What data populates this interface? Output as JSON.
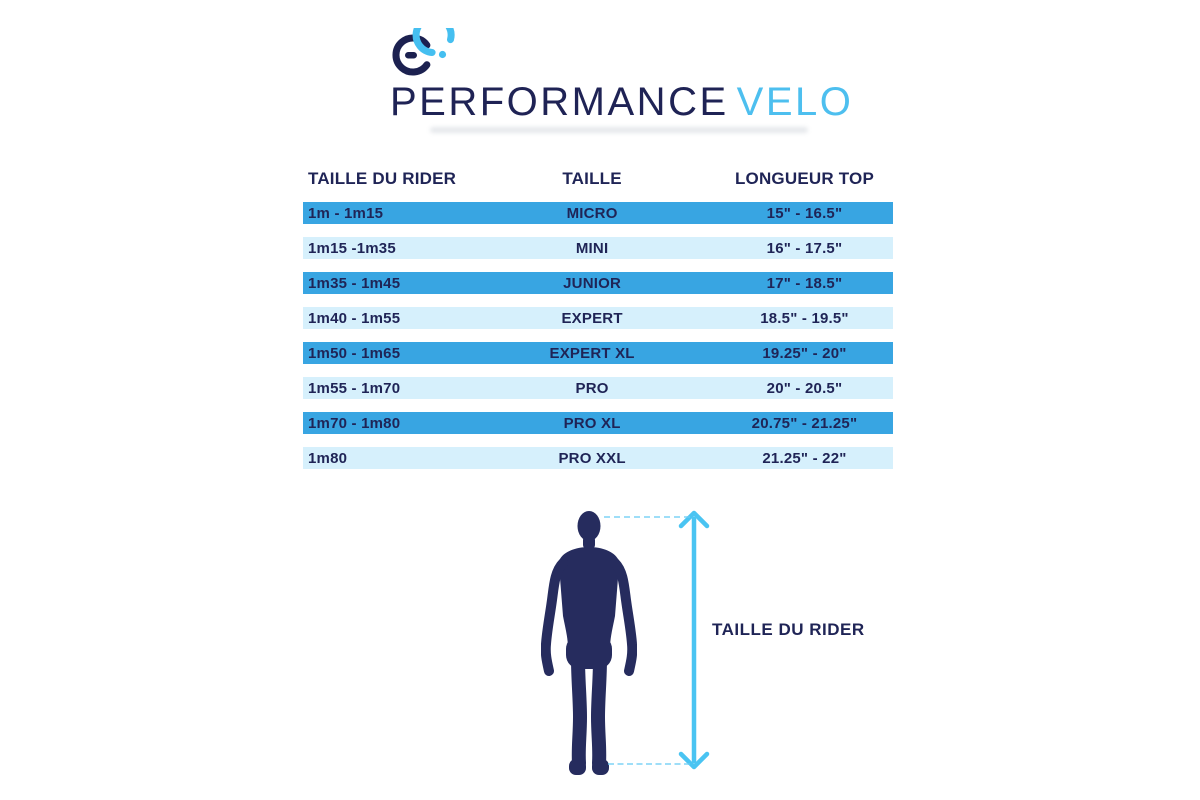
{
  "logo": {
    "name": "PERFORMANCE",
    "suffix": "VELO"
  },
  "chart_data": {
    "type": "table",
    "title": "PERFORMANCE VELO",
    "columns": [
      "TAILLE DU RIDER",
      "TAILLE",
      "LONGUEUR TOP"
    ],
    "rows": [
      [
        "1m - 1m15",
        "MICRO",
        "15\" - 16.5\""
      ],
      [
        "1m15 -1m35",
        "MINI",
        "16\" - 17.5\""
      ],
      [
        "1m35 - 1m45",
        "JUNIOR",
        "17\" - 18.5\""
      ],
      [
        "1m40 - 1m55",
        "EXPERT",
        "18.5\" - 19.5\""
      ],
      [
        "1m50 - 1m65",
        "EXPERT XL",
        "19.25\" - 20\""
      ],
      [
        "1m55 - 1m70",
        "PRO",
        "20\" - 20.5\""
      ],
      [
        "1m70 - 1m80",
        "PRO XL",
        "20.75\" - 21.25\""
      ],
      [
        "1m80",
        "PRO XXL",
        "21.25\" - 22\""
      ]
    ],
    "layout": {
      "row_stripe_pattern": "dark,light alternating",
      "grid": "off"
    }
  },
  "figure": {
    "label": "TAILLE DU RIDER"
  },
  "colors": {
    "navy": "#1f2456",
    "silhouette_navy": "#262c5e",
    "brand_blue": "#4dbfef",
    "arrow_blue": "#4ac4f2",
    "row_dark": "#38a5e2",
    "row_light": "#d6f0fc"
  }
}
